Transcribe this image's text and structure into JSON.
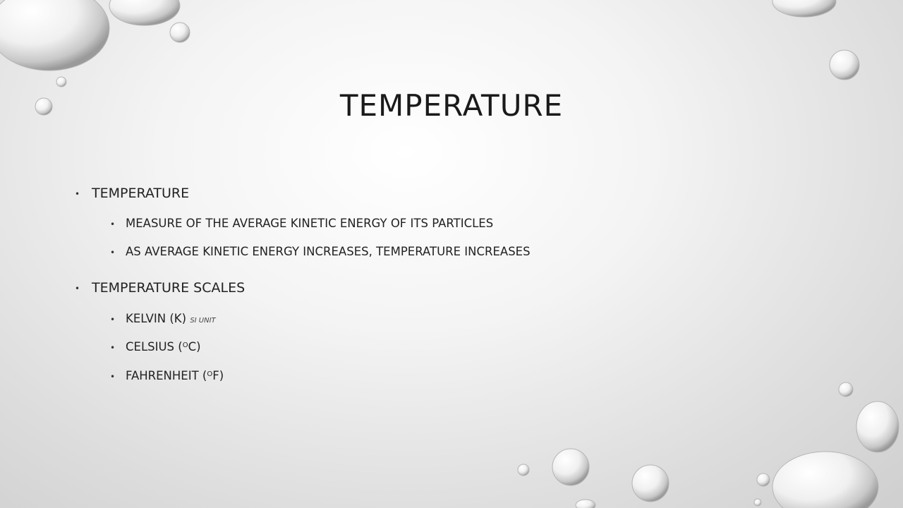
{
  "slide": {
    "title": "TEMPERATURE",
    "bullets": {
      "b1": {
        "text": "TEMPERATURE",
        "sub1": "MEASURE OF THE AVERAGE KINETIC ENERGY OF ITS PARTICLES",
        "sub2": "AS AVERAGE KINETIC ENERGY INCREASES, TEMPERATURE INCREASES"
      },
      "b2": {
        "text": "TEMPERATURE SCALES",
        "kelvin": "KELVIN (K)",
        "kelvin_note": "SI UNIT",
        "celsius_pre": "CELSIUS (",
        "celsius_sup": "O",
        "celsius_post": "C)",
        "fahrenheit_pre": "FAHRENHEIT (",
        "fahrenheit_sup": "O",
        "fahrenheit_post": "F)"
      }
    },
    "bullet_glyph": "•",
    "colors": {
      "text": "#222222",
      "background": "#f2f2f2"
    }
  }
}
